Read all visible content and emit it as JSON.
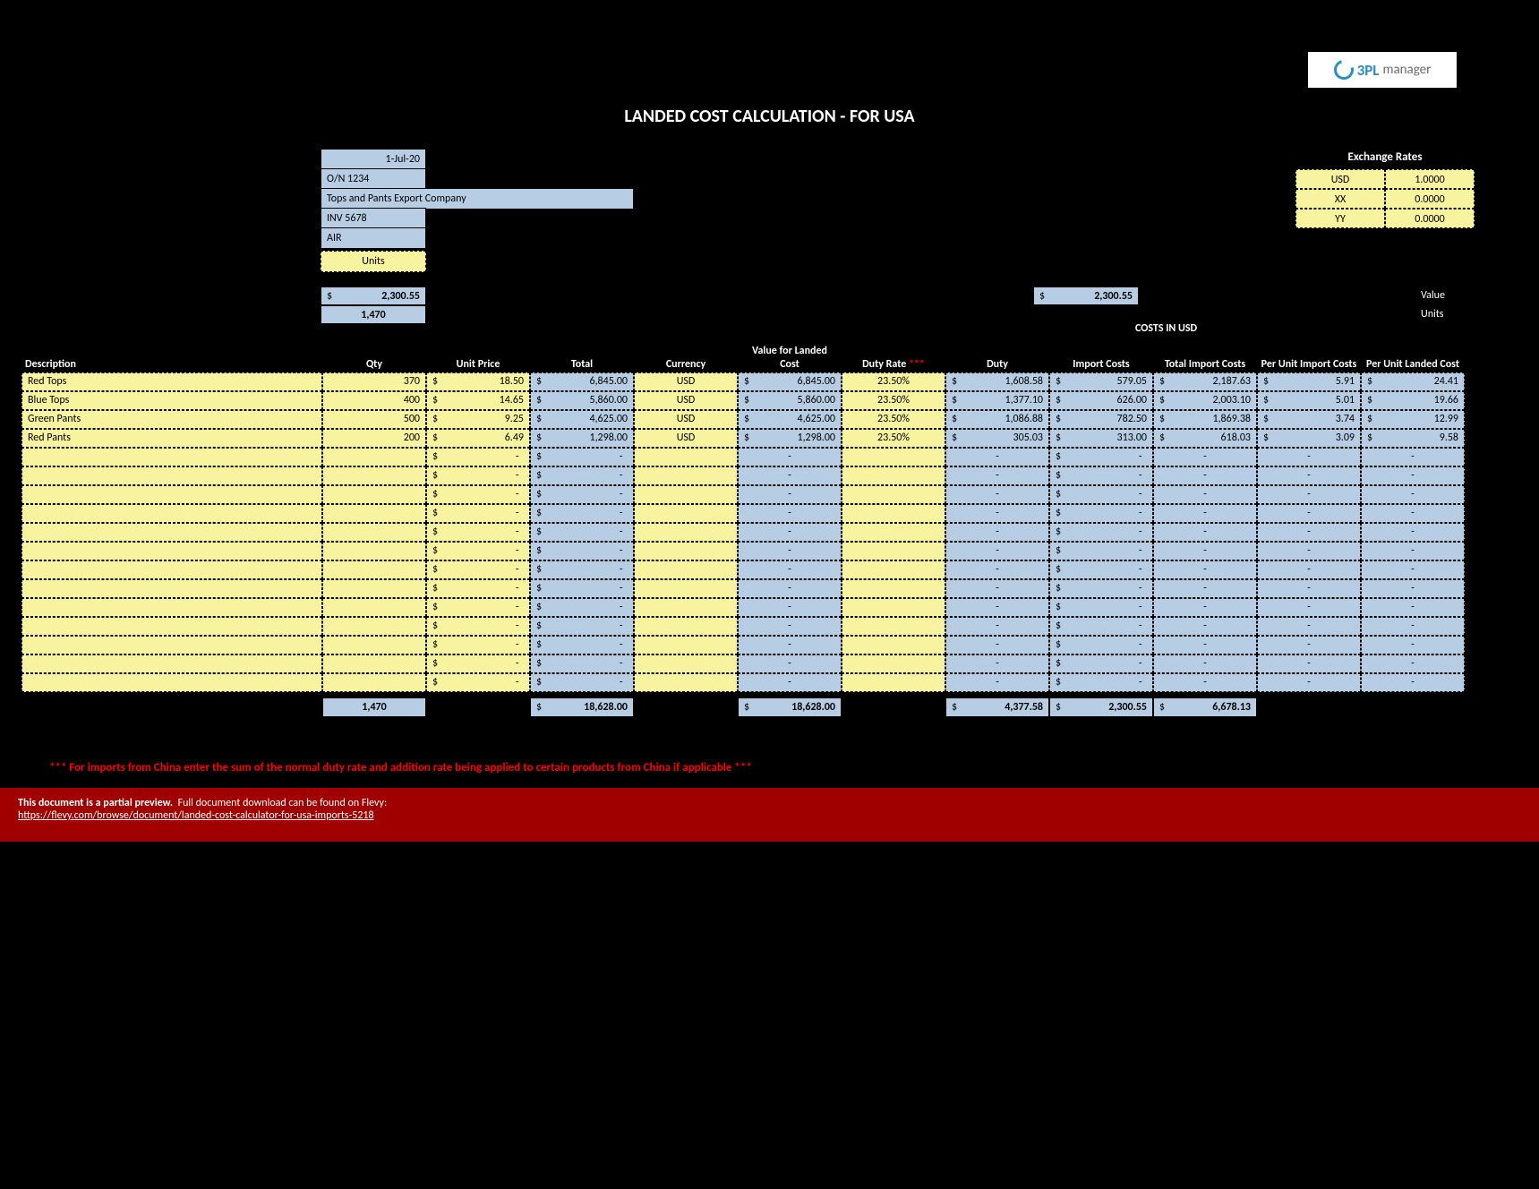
{
  "colors": {
    "page_bg": "#000000",
    "yellow": "#f7f39f",
    "blue": "#b7cde4",
    "banner": "#a00000",
    "red_text": "#ff0000",
    "white": "#ffffff"
  },
  "logo": {
    "text1": "3PL",
    "text2": "manager"
  },
  "title": "LANDED COST CALCULATION - FOR USA",
  "header": {
    "date": "1-Jul-20",
    "order_no": "O/N 1234",
    "company": "Tops and Pants Export Company",
    "invoice": "INV 5678",
    "ship": "AIR",
    "units_label": "Units"
  },
  "exchange": {
    "title": "Exchange Rates",
    "rows": [
      {
        "code": "USD",
        "rate": "1.0000"
      },
      {
        "code": "XX",
        "rate": "0.0000"
      },
      {
        "code": "YY",
        "rate": "0.0000"
      }
    ]
  },
  "summary": {
    "amount": "2,300.55",
    "qty": "1,470",
    "amount2": "2,300.55",
    "value_label": "Value",
    "units_label": "Units"
  },
  "costs_usd_label": "COSTS IN USD",
  "columns": {
    "desc": "Description",
    "qty": "Qty",
    "unit_price": "Unit Price",
    "total": "Total",
    "currency": "Currency",
    "vlc": "Value for Landed Cost",
    "duty_rate": "Duty Rate",
    "duty_rate_stars": "***",
    "duty": "Duty",
    "import_costs": "Import Costs",
    "tic": "Total Import Costs",
    "puic": "Per Unit Import Costs",
    "pulc": "Per Unit Landed Cost"
  },
  "rows": [
    {
      "desc": "Red Tops",
      "qty": "370",
      "up": "18.50",
      "tot": "6,845.00",
      "cur": "USD",
      "vlc": "6,845.00",
      "dr": "23.50%",
      "duty": "1,608.58",
      "ic": "579.05",
      "tic": "2,187.63",
      "puic": "5.91",
      "pulc": "24.41"
    },
    {
      "desc": "Blue Tops",
      "qty": "400",
      "up": "14.65",
      "tot": "5,860.00",
      "cur": "USD",
      "vlc": "5,860.00",
      "dr": "23.50%",
      "duty": "1,377.10",
      "ic": "626.00",
      "tic": "2,003.10",
      "puic": "5.01",
      "pulc": "19.66"
    },
    {
      "desc": "Green Pants",
      "qty": "500",
      "up": "9.25",
      "tot": "4,625.00",
      "cur": "USD",
      "vlc": "4,625.00",
      "dr": "23.50%",
      "duty": "1,086.88",
      "ic": "782.50",
      "tic": "1,869.38",
      "puic": "3.74",
      "pulc": "12.99"
    },
    {
      "desc": "Red Pants",
      "qty": "200",
      "up": "6.49",
      "tot": "1,298.00",
      "cur": "USD",
      "vlc": "1,298.00",
      "dr": "23.50%",
      "duty": "305.03",
      "ic": "313.00",
      "tic": "618.03",
      "puic": "3.09",
      "pulc": "9.58"
    }
  ],
  "empty_row_count": 13,
  "totals": {
    "qty": "1,470",
    "tot": "18,628.00",
    "vlc": "18,628.00",
    "duty": "4,377.58",
    "ic": "2,300.55",
    "tic": "6,678.13"
  },
  "note": "*** For imports from China enter the sum of the normal duty rate and addition rate being applied to certain products from China if applicable ***",
  "banner": {
    "bold": "This document is a partial preview.",
    "rest": "Full document download can be found on Flevy:",
    "link": "https://flevy.com/browse/document/landed-cost-calculator-for-usa-imports-5218"
  }
}
